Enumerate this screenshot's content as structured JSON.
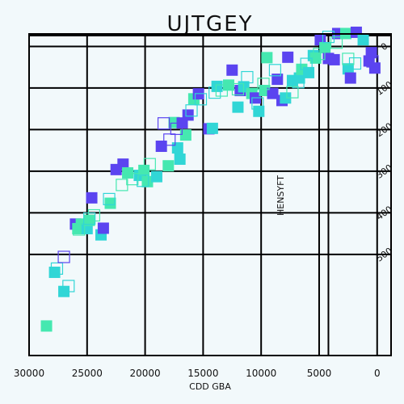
{
  "chart_data": {
    "type": "scatter",
    "title": "UJTGEY",
    "xlabel": "CDD GBA",
    "ylabel": "HENSYFT",
    "xlim": [
      30000,
      -1200
    ],
    "ylim": [
      -30,
      743
    ],
    "x_inverted": true,
    "grid": true,
    "legend": "none",
    "x_ticks": [
      30000,
      25000,
      20000,
      15000,
      10000,
      5000,
      0
    ],
    "x_tick_labels": [
      "30000",
      "25000",
      "20000",
      "15000",
      "10000",
      "5000",
      "0"
    ],
    "y_ticks": [
      0,
      100,
      200,
      300,
      400,
      500
    ],
    "y_tick_labels": [
      "0",
      "100",
      "200",
      "300",
      "400",
      "500"
    ],
    "colors": {
      "violet": "#5b44f0",
      "teal": "#31d6d6",
      "mint": "#45e8b0",
      "background": "#f2f9fb",
      "grid": "#000000"
    },
    "series": [
      {
        "style": "filled",
        "points": [
          [
            28500,
            672,
            "mint"
          ],
          [
            27800,
            543,
            "teal"
          ],
          [
            27000,
            589,
            "teal"
          ],
          [
            26000,
            427,
            "violet"
          ],
          [
            25800,
            438,
            "mint"
          ],
          [
            25500,
            427,
            "mint"
          ],
          [
            25000,
            438,
            "teal"
          ],
          [
            24800,
            418,
            "mint"
          ],
          [
            24600,
            364,
            "violet"
          ],
          [
            23800,
            453,
            "teal"
          ],
          [
            23600,
            437,
            "violet"
          ],
          [
            23000,
            377,
            "mint"
          ],
          [
            22500,
            296,
            "violet"
          ],
          [
            21900,
            283,
            "violet"
          ],
          [
            21500,
            304,
            "mint"
          ],
          [
            20500,
            310,
            "teal"
          ],
          [
            20100,
            298,
            "mint"
          ],
          [
            19800,
            325,
            "mint"
          ],
          [
            19000,
            313,
            "teal"
          ],
          [
            18600,
            240,
            "violet"
          ],
          [
            18000,
            287,
            "mint"
          ],
          [
            17500,
            183,
            "mint"
          ],
          [
            17200,
            244,
            "teal"
          ],
          [
            17000,
            271,
            "teal"
          ],
          [
            16800,
            184,
            "violet"
          ],
          [
            16500,
            213,
            "mint"
          ],
          [
            16300,
            165,
            "violet"
          ],
          [
            15800,
            126,
            "mint"
          ],
          [
            15400,
            114,
            "violet"
          ],
          [
            14500,
            198,
            "violet"
          ],
          [
            14200,
            197,
            "teal"
          ],
          [
            13800,
            96,
            "teal"
          ],
          [
            12800,
            93,
            "mint"
          ],
          [
            12500,
            57,
            "violet"
          ],
          [
            12000,
            146,
            "teal"
          ],
          [
            11800,
            106,
            "violet"
          ],
          [
            11500,
            97,
            "teal"
          ],
          [
            10800,
            113,
            "mint"
          ],
          [
            10500,
            124,
            "violet"
          ],
          [
            10200,
            156,
            "teal"
          ],
          [
            9700,
            106,
            "mint"
          ],
          [
            9500,
            27,
            "mint"
          ],
          [
            9000,
            113,
            "violet"
          ],
          [
            8600,
            79,
            "violet"
          ],
          [
            8200,
            130,
            "violet"
          ],
          [
            7900,
            124,
            "teal"
          ],
          [
            7700,
            26,
            "violet"
          ],
          [
            7300,
            82,
            "teal"
          ],
          [
            6700,
            76,
            "teal"
          ],
          [
            6500,
            55,
            "mint"
          ],
          [
            5900,
            63,
            "teal"
          ],
          [
            5500,
            22,
            "teal"
          ],
          [
            5300,
            28,
            "mint"
          ],
          [
            4900,
            -16,
            "violet"
          ],
          [
            4500,
            3,
            "mint"
          ],
          [
            4200,
            29,
            "violet"
          ],
          [
            3700,
            32,
            "violet"
          ],
          [
            3400,
            -31,
            "violet"
          ],
          [
            2700,
            -31,
            "mint"
          ],
          [
            2500,
            54,
            "teal"
          ],
          [
            2300,
            76,
            "violet"
          ],
          [
            1800,
            -34,
            "violet"
          ],
          [
            1200,
            -16,
            "teal"
          ],
          [
            700,
            35,
            "violet"
          ],
          [
            500,
            15,
            "violet"
          ],
          [
            200,
            52,
            "violet"
          ]
        ]
      },
      {
        "style": "hollow",
        "points": [
          [
            27600,
            534,
            "teal"
          ],
          [
            27000,
            506,
            "violet"
          ],
          [
            26600,
            576,
            "teal"
          ],
          [
            25700,
            440,
            "mint"
          ],
          [
            24800,
            414,
            "teal"
          ],
          [
            24400,
            406,
            "mint"
          ],
          [
            23100,
            367,
            "teal"
          ],
          [
            22000,
            333,
            "mint"
          ],
          [
            21100,
            319,
            "mint"
          ],
          [
            20200,
            323,
            "teal"
          ],
          [
            19600,
            283,
            "mint"
          ],
          [
            18400,
            185,
            "violet"
          ],
          [
            17900,
            224,
            "violet"
          ],
          [
            17300,
            198,
            "violet"
          ],
          [
            16000,
            154,
            "teal"
          ],
          [
            15200,
            127,
            "teal"
          ],
          [
            14000,
            111,
            "teal"
          ],
          [
            13400,
            106,
            "mint"
          ],
          [
            12000,
            103,
            "mint"
          ],
          [
            11200,
            74,
            "teal"
          ],
          [
            10300,
            137,
            "teal"
          ],
          [
            9800,
            90,
            "mint"
          ],
          [
            8800,
            57,
            "teal"
          ],
          [
            7300,
            110,
            "mint"
          ],
          [
            6800,
            86,
            "teal"
          ],
          [
            6100,
            42,
            "teal"
          ],
          [
            5000,
            18,
            "mint"
          ],
          [
            4200,
            -23,
            "teal"
          ],
          [
            3500,
            -9,
            "mint"
          ],
          [
            2500,
            30,
            "mint"
          ],
          [
            1900,
            41,
            "teal"
          ],
          [
            400,
            36,
            "violet"
          ]
        ]
      }
    ]
  }
}
